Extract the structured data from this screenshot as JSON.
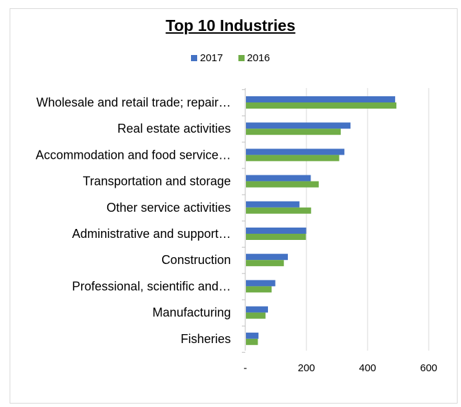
{
  "chart_data": {
    "type": "bar",
    "orientation": "horizontal",
    "title": "Top 10 Industries",
    "categories": [
      "Wholesale and retail trade; repair…",
      "Real estate activities",
      "Accommodation and food service…",
      "Transportation and storage",
      "Other service activities",
      "Administrative and support…",
      "Construction",
      "Professional, scientific and…",
      "Manufacturing",
      "Fisheries"
    ],
    "series": [
      {
        "name": "2017",
        "color": "#4472c4",
        "values": [
          488,
          342,
          322,
          212,
          175,
          197,
          137,
          96,
          72,
          41
        ]
      },
      {
        "name": "2016",
        "color": "#70ad47",
        "values": [
          492,
          310,
          305,
          238,
          213,
          196,
          124,
          84,
          64,
          39
        ]
      }
    ],
    "xlim": [
      0,
      600
    ],
    "xticks": [
      {
        "value": 0,
        "label": "-"
      },
      {
        "value": 200,
        "label": "200"
      },
      {
        "value": 400,
        "label": "400"
      },
      {
        "value": 600,
        "label": "600"
      }
    ],
    "legend_position": "top",
    "grid": "vertical"
  }
}
